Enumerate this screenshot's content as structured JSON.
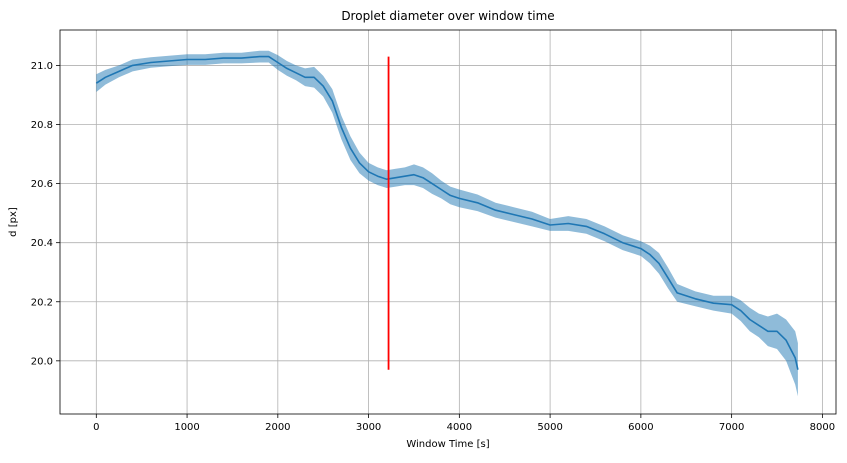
{
  "chart_data": {
    "type": "line",
    "title": "Droplet diameter over window time",
    "xlabel": "Window Time [s]",
    "ylabel": "d [px]",
    "xlim": [
      -400,
      8150
    ],
    "ylim": [
      19.82,
      21.12
    ],
    "xticks": [
      0,
      1000,
      2000,
      3000,
      4000,
      5000,
      6000,
      7000,
      8000
    ],
    "yticks": [
      20.0,
      20.2,
      20.4,
      20.6,
      20.8,
      21.0
    ],
    "xtick_labels": [
      "0",
      "1000",
      "2000",
      "3000",
      "4000",
      "5000",
      "6000",
      "7000",
      "8000"
    ],
    "ytick_labels": [
      "20.0",
      "20.2",
      "20.4",
      "20.6",
      "20.8",
      "21.0"
    ],
    "grid": true,
    "series": [
      {
        "kind": "line",
        "color": "#1f77b4",
        "band_color": "#1f77b4",
        "band_opacity": 0.5,
        "x": [
          0,
          100,
          250,
          400,
          600,
          800,
          1000,
          1200,
          1400,
          1600,
          1800,
          1900,
          2000,
          2100,
          2200,
          2300,
          2400,
          2500,
          2600,
          2700,
          2800,
          2900,
          3000,
          3100,
          3200,
          3300,
          3400,
          3500,
          3600,
          3700,
          3800,
          3900,
          4000,
          4200,
          4400,
          4600,
          4800,
          5000,
          5200,
          5400,
          5600,
          5800,
          6000,
          6100,
          6200,
          6300,
          6400,
          6600,
          6800,
          7000,
          7100,
          7200,
          7300,
          7400,
          7500,
          7600,
          7650,
          7700,
          7730
        ],
        "y": [
          20.94,
          20.96,
          20.98,
          21.0,
          21.01,
          21.015,
          21.02,
          21.02,
          21.025,
          21.025,
          21.03,
          21.03,
          21.01,
          20.99,
          20.975,
          20.96,
          20.96,
          20.93,
          20.88,
          20.79,
          20.72,
          20.67,
          20.64,
          20.625,
          20.615,
          20.62,
          20.625,
          20.63,
          20.62,
          20.6,
          20.58,
          20.56,
          20.55,
          20.535,
          20.51,
          20.495,
          20.48,
          20.46,
          20.465,
          20.455,
          20.43,
          20.4,
          20.38,
          20.36,
          20.33,
          20.28,
          20.23,
          20.21,
          20.195,
          20.19,
          20.17,
          20.14,
          20.12,
          20.1,
          20.1,
          20.07,
          20.04,
          20.01,
          19.97
        ],
        "err": [
          0.03,
          0.025,
          0.02,
          0.02,
          0.018,
          0.018,
          0.018,
          0.018,
          0.018,
          0.018,
          0.02,
          0.02,
          0.025,
          0.025,
          0.025,
          0.03,
          0.035,
          0.035,
          0.04,
          0.04,
          0.04,
          0.035,
          0.03,
          0.03,
          0.03,
          0.03,
          0.03,
          0.035,
          0.035,
          0.035,
          0.03,
          0.03,
          0.03,
          0.028,
          0.025,
          0.025,
          0.025,
          0.02,
          0.025,
          0.025,
          0.025,
          0.025,
          0.025,
          0.03,
          0.035,
          0.035,
          0.03,
          0.025,
          0.025,
          0.03,
          0.035,
          0.04,
          0.04,
          0.05,
          0.06,
          0.07,
          0.08,
          0.09,
          0.09
        ]
      }
    ],
    "vline": {
      "x": 3220,
      "y_start": 19.97,
      "y_end": 21.03,
      "color": "#ff0000"
    }
  }
}
